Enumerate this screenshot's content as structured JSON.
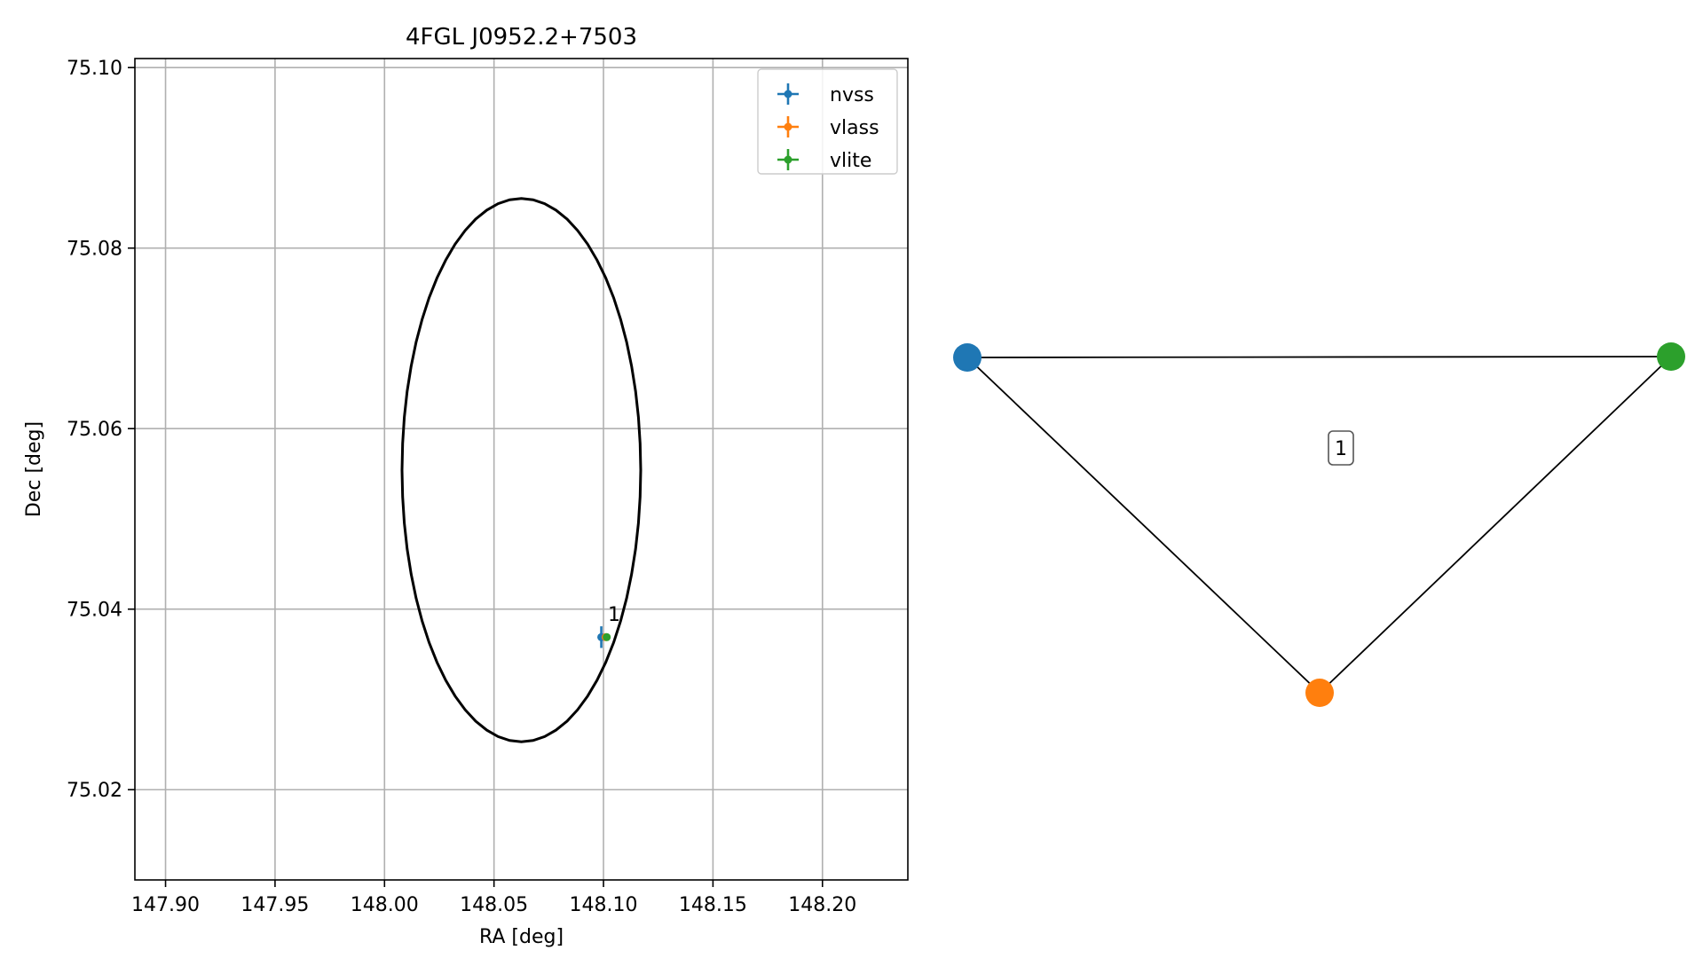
{
  "chart_data": [
    {
      "type": "scatter",
      "title": "4FGL J0952.2+7503",
      "xlabel": "RA [deg]",
      "ylabel": "Dec [deg]",
      "xlim": [
        147.886,
        148.239
      ],
      "ylim": [
        75.01,
        75.101
      ],
      "xticks": [
        147.9,
        147.95,
        148.0,
        148.05,
        148.1,
        148.15,
        148.2
      ],
      "xtick_labels": [
        "147.90",
        "147.95",
        "148.00",
        "148.05",
        "148.10",
        "148.15",
        "148.20"
      ],
      "yticks": [
        75.02,
        75.04,
        75.06,
        75.08,
        75.1
      ],
      "ytick_labels": [
        "75.02",
        "75.04",
        "75.06",
        "75.08",
        "75.10"
      ],
      "grid": true,
      "legend_position": "top-right",
      "series": [
        {
          "name": "nvss",
          "color": "#1f77b4",
          "points": [
            {
              "x": 148.099,
              "y": 75.0369,
              "xerr": 0.0012,
              "yerr": 0.0012
            }
          ]
        },
        {
          "name": "vlass",
          "color": "#ff7f0e",
          "points": [
            {
              "x": 148.101,
              "y": 75.0369,
              "xerr": 0.0002,
              "yerr": 0.0002
            }
          ]
        },
        {
          "name": "vlite",
          "color": "#2ca02c",
          "points": [
            {
              "x": 148.1015,
              "y": 75.0369,
              "xerr": 0.0004,
              "yerr": 0.0004
            }
          ]
        }
      ],
      "ellipse": {
        "center_x": 148.0625,
        "center_y": 75.0554,
        "semi_x": 0.0545,
        "semi_y": 0.0301,
        "color": "#000000"
      },
      "annotations": [
        {
          "text": "1",
          "x": 148.102,
          "y": 75.0385
        }
      ]
    },
    {
      "type": "network",
      "nodes": [
        {
          "id": "nvss",
          "color": "#1f77b4"
        },
        {
          "id": "vlass",
          "color": "#ff7f0e"
        },
        {
          "id": "vlite",
          "color": "#2ca02c"
        }
      ],
      "edges": [
        [
          "nvss",
          "vlite"
        ],
        [
          "nvss",
          "vlass"
        ],
        [
          "vlass",
          "vlite"
        ]
      ],
      "box_label": "1"
    }
  ]
}
